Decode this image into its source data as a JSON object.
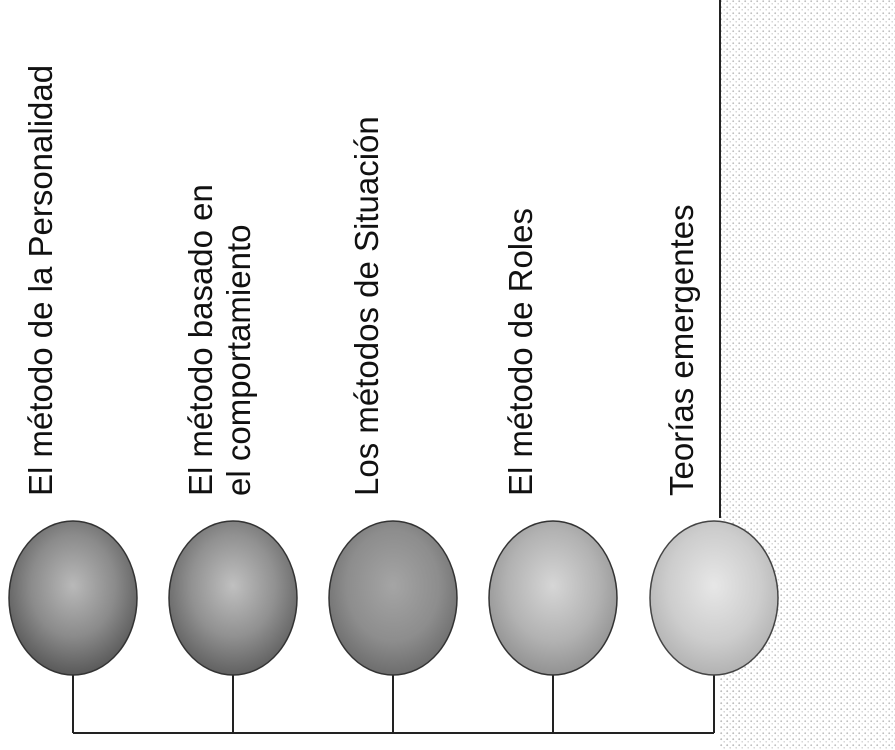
{
  "colors": {
    "line": "#222222",
    "texture_right_dots": "#bdbdbd",
    "circle_1": "#7a7a7a",
    "circle_2": "#858585",
    "circle_3": "#8d8d8d",
    "circle_4": "#b2b2b2",
    "circle_5": "#cdcdcd"
  },
  "items": [
    {
      "lines": [
        "El método de la Personalidad"
      ]
    },
    {
      "lines": [
        "El método basado en",
        "el comportamiento"
      ]
    },
    {
      "lines": [
        "Los métodos de Situación"
      ]
    },
    {
      "lines": [
        "El método de Roles"
      ]
    },
    {
      "lines": [
        "Teorías emergentes"
      ]
    }
  ]
}
